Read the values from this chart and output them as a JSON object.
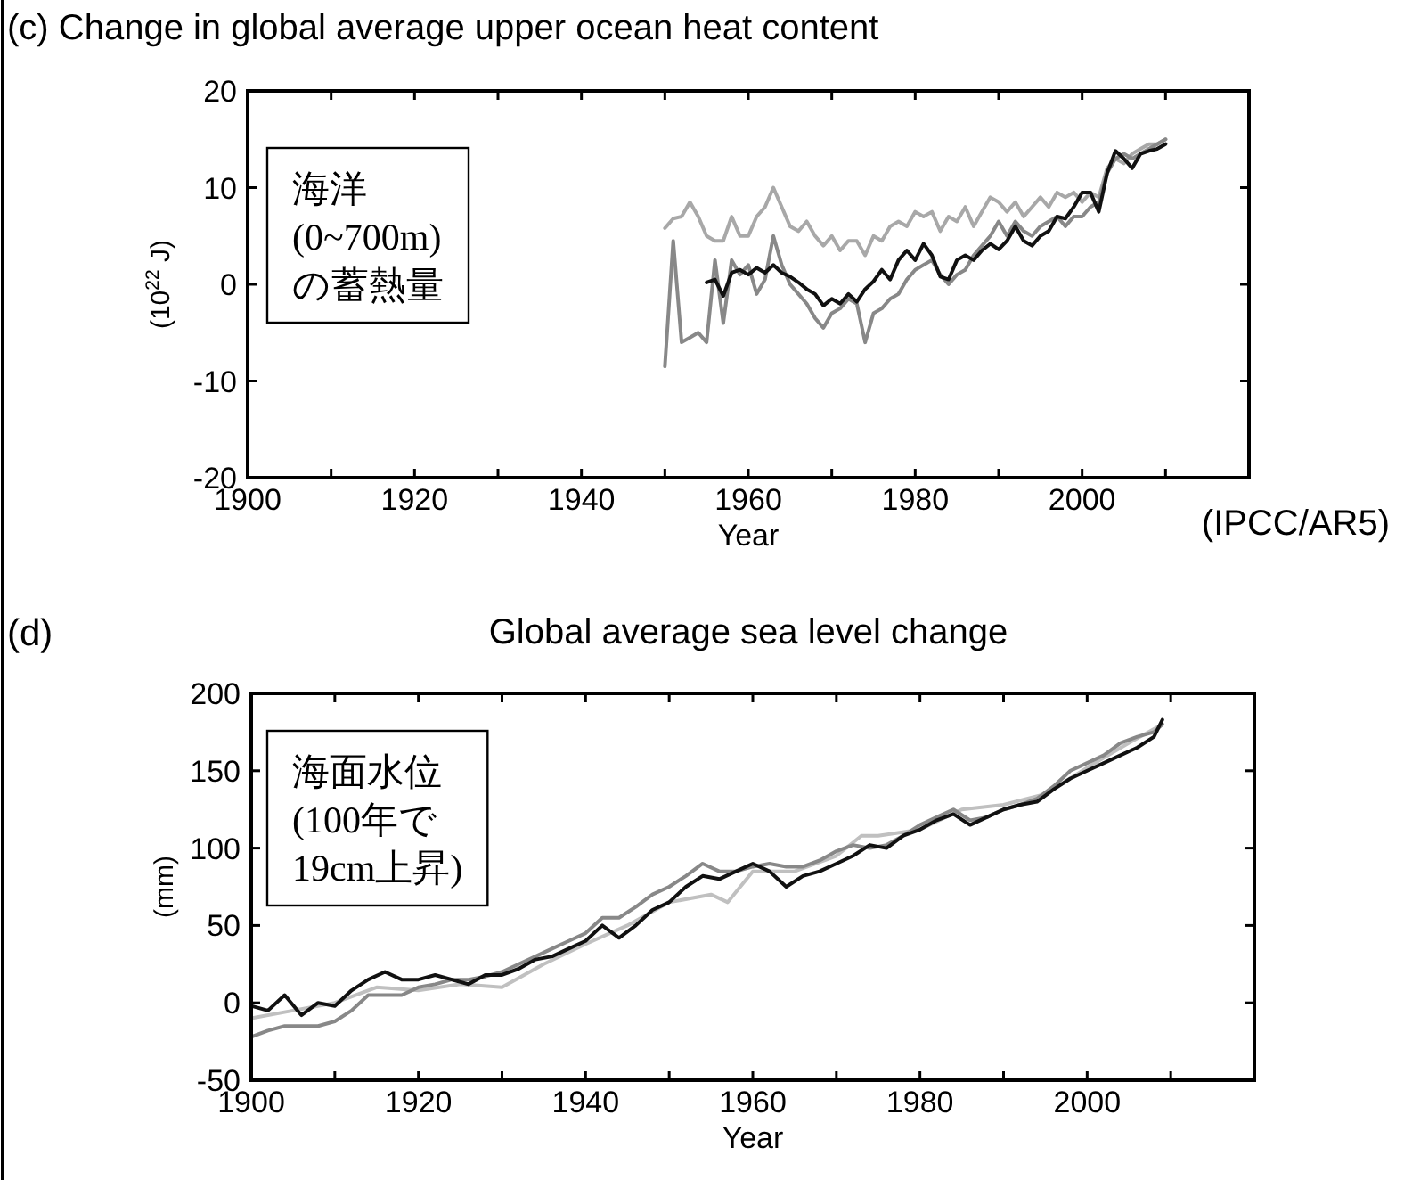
{
  "chart_data": [
    {
      "type": "line",
      "title": "(c) Change in global average upper ocean heat content",
      "xlabel": "Year",
      "ylabel": "(10$^{22}$ J)",
      "annotations": [
        "海洋\n(0~700m)\nの蓄熱量",
        "(IPCC/AR5)"
      ],
      "xlim": [
        1900,
        2020
      ],
      "ylim": [
        -20,
        20
      ],
      "xticks": [
        1900,
        {
          "value": 1910,
          "label": null
        },
        1920,
        {
          "value": 1930,
          "label": null
        },
        1940,
        {
          "value": 1950,
          "label": null
        },
        1960,
        {
          "value": 1970,
          "label": null
        },
        1980,
        {
          "value": 1990,
          "label": null
        },
        2000,
        {
          "value": 2010,
          "label": null
        },
        {
          "value": 2020,
          "label": null
        }
      ],
      "yticks": [
        -20,
        -10,
        0,
        10,
        20
      ],
      "grid": false,
      "marker": "none",
      "line_style": "solid",
      "series": [
        {
          "color": "#a8a8a8",
          "x": [
            1950,
            1951,
            1952,
            1953,
            1954,
            1955,
            1956,
            1957,
            1958,
            1959,
            1960,
            1961,
            1962,
            1963,
            1964,
            1965,
            1966,
            1967,
            1968,
            1969,
            1970,
            1971,
            1972,
            1973,
            1974,
            1975,
            1976,
            1977,
            1978,
            1979,
            1980,
            1981,
            1982,
            1983,
            1984,
            1985,
            1986,
            1987,
            1988,
            1989,
            1990,
            1991,
            1992,
            1993,
            1994,
            1995,
            1996,
            1997,
            1998,
            1999,
            2000,
            2001,
            2002,
            2003,
            2004,
            2005,
            2006,
            2007,
            2008,
            2009,
            2010
          ],
          "values": [
            5.8,
            6.8,
            7.0,
            8.5,
            7.0,
            5.0,
            4.5,
            4.5,
            7.0,
            5.0,
            5.0,
            7.0,
            8.0,
            10.0,
            8.0,
            6.0,
            5.5,
            6.5,
            5.0,
            4.0,
            5.0,
            3.5,
            4.5,
            4.5,
            3.0,
            5.0,
            4.5,
            6.0,
            6.5,
            6.0,
            7.5,
            7.0,
            7.5,
            5.5,
            7.0,
            6.5,
            8.0,
            6.0,
            7.5,
            9.0,
            8.5,
            7.5,
            8.5,
            7.0,
            8.0,
            9.0,
            8.0,
            9.5,
            9.0,
            9.5,
            8.5,
            9.5,
            9.0,
            12.0,
            13.0,
            12.5,
            13.5,
            14.0,
            14.5,
            14.5,
            15.0
          ]
        },
        {
          "color": "#888888",
          "x": [
            1950,
            1951,
            1952,
            1953,
            1954,
            1955,
            1956,
            1957,
            1958,
            1959,
            1960,
            1961,
            1962,
            1963,
            1964,
            1965,
            1966,
            1967,
            1968,
            1969,
            1970,
            1971,
            1972,
            1973,
            1974,
            1975,
            1976,
            1977,
            1978,
            1979,
            1980,
            1981,
            1982,
            1983,
            1984,
            1985,
            1986,
            1987,
            1988,
            1989,
            1990,
            1991,
            1992,
            1993,
            1994,
            1995,
            1996,
            1997,
            1998,
            1999,
            2000,
            2001,
            2002,
            2003,
            2004,
            2005,
            2006,
            2007,
            2008,
            2009,
            2010
          ],
          "values": [
            -8.5,
            4.5,
            -6.0,
            -5.5,
            -5.0,
            -6.0,
            2.5,
            -4.0,
            2.5,
            1.0,
            2.0,
            -1.0,
            0.5,
            5.0,
            2.0,
            0.0,
            -1.0,
            -2.0,
            -3.5,
            -4.5,
            -3.0,
            -2.5,
            -1.5,
            -2.0,
            -6.0,
            -3.0,
            -2.5,
            -1.5,
            -1.0,
            0.5,
            1.5,
            2.0,
            2.5,
            1.0,
            0.0,
            1.0,
            1.5,
            3.0,
            4.0,
            5.0,
            6.5,
            5.0,
            6.5,
            5.5,
            5.0,
            6.0,
            6.5,
            7.0,
            6.0,
            7.0,
            7.0,
            8.0,
            8.5,
            11.5,
            13.0,
            13.5,
            13.0,
            13.5,
            14.0,
            14.5,
            15.0
          ]
        },
        {
          "color": "#111111",
          "x": [
            1955,
            1956,
            1957,
            1958,
            1959,
            1960,
            1961,
            1962,
            1963,
            1964,
            1965,
            1966,
            1967,
            1968,
            1969,
            1970,
            1971,
            1972,
            1973,
            1974,
            1975,
            1976,
            1977,
            1978,
            1979,
            1980,
            1981,
            1982,
            1983,
            1984,
            1985,
            1986,
            1987,
            1988,
            1989,
            1990,
            1991,
            1992,
            1993,
            1994,
            1995,
            1996,
            1997,
            1998,
            1999,
            2000,
            2001,
            2002,
            2003,
            2004,
            2005,
            2006,
            2007,
            2008,
            2009,
            2010
          ],
          "values": [
            0.2,
            0.5,
            -1.2,
            1.2,
            1.5,
            1.0,
            1.7,
            1.2,
            2.0,
            1.2,
            0.8,
            0.2,
            -0.5,
            -1.0,
            -2.2,
            -1.5,
            -2.0,
            -1.0,
            -1.8,
            -0.5,
            0.3,
            1.5,
            0.5,
            2.5,
            3.5,
            2.5,
            4.2,
            3.0,
            0.8,
            0.5,
            2.5,
            3.0,
            2.5,
            3.5,
            4.2,
            3.6,
            4.5,
            6.0,
            4.5,
            4.0,
            5.0,
            5.5,
            7.0,
            6.8,
            8.0,
            9.5,
            9.5,
            7.5,
            11.5,
            13.8,
            13.0,
            12.0,
            13.5,
            13.8,
            14.0,
            14.5
          ]
        }
      ]
    },
    {
      "type": "line",
      "title": "Global average sea level change",
      "xlabel": "Year",
      "ylabel": "(mm)",
      "annotations": [
        "(d)",
        "海面水位\n(100年で\n19cm上昇)"
      ],
      "xlim": [
        1900,
        2020
      ],
      "ylim": [
        -50,
        200
      ],
      "xticks": [
        1900,
        {
          "value": 1910,
          "label": null
        },
        1920,
        {
          "value": 1930,
          "label": null
        },
        1940,
        {
          "value": 1950,
          "label": null
        },
        1960,
        {
          "value": 1970,
          "label": null
        },
        1980,
        {
          "value": 1990,
          "label": null
        },
        2000,
        {
          "value": 2010,
          "label": null
        },
        {
          "value": 2020,
          "label": null
        }
      ],
      "yticks": [
        -50,
        0,
        50,
        100,
        150,
        200
      ],
      "grid": false,
      "marker": "none",
      "line_style": "solid",
      "series": [
        {
          "color": "#c0c0c0",
          "x": [
            1900,
            1905,
            1910,
            1915,
            1920,
            1925,
            1930,
            1935,
            1940,
            1945,
            1950,
            1955,
            1957,
            1960,
            1965,
            1970,
            1973,
            1975,
            1980,
            1985,
            1990,
            1995,
            2000,
            2005,
            2009
          ],
          "values": [
            -10,
            -5,
            0,
            10,
            8,
            12,
            10,
            25,
            38,
            50,
            65,
            70,
            65,
            85,
            85,
            95,
            108,
            108,
            112,
            125,
            128,
            135,
            152,
            168,
            180
          ]
        },
        {
          "color": "#888888",
          "x": [
            1900,
            1902,
            1904,
            1906,
            1908,
            1910,
            1912,
            1914,
            1916,
            1918,
            1920,
            1922,
            1924,
            1926,
            1928,
            1930,
            1932,
            1934,
            1936,
            1938,
            1940,
            1942,
            1944,
            1946,
            1948,
            1950,
            1952,
            1954,
            1956,
            1958,
            1960,
            1962,
            1964,
            1966,
            1968,
            1970,
            1972,
            1974,
            1976,
            1978,
            1980,
            1982,
            1984,
            1986,
            1988,
            1990,
            1992,
            1994,
            1996,
            1998,
            2000,
            2002,
            2004,
            2006,
            2008,
            2009
          ],
          "values": [
            -22,
            -18,
            -15,
            -15,
            -15,
            -12,
            -5,
            5,
            5,
            5,
            10,
            12,
            15,
            15,
            17,
            20,
            25,
            30,
            35,
            40,
            45,
            55,
            55,
            62,
            70,
            75,
            82,
            90,
            85,
            85,
            88,
            90,
            88,
            88,
            92,
            98,
            102,
            100,
            102,
            108,
            115,
            120,
            125,
            118,
            120,
            125,
            128,
            132,
            140,
            150,
            155,
            160,
            168,
            172,
            175,
            180
          ]
        },
        {
          "color": "#111111",
          "x": [
            1900,
            1902,
            1904,
            1906,
            1908,
            1910,
            1912,
            1914,
            1916,
            1918,
            1920,
            1922,
            1924,
            1926,
            1928,
            1930,
            1932,
            1934,
            1936,
            1938,
            1940,
            1942,
            1944,
            1946,
            1948,
            1950,
            1952,
            1954,
            1956,
            1958,
            1960,
            1962,
            1964,
            1966,
            1968,
            1970,
            1972,
            1974,
            1976,
            1978,
            1980,
            1982,
            1984,
            1986,
            1988,
            1990,
            1992,
            1994,
            1996,
            1998,
            2000,
            2002,
            2004,
            2006,
            2008,
            2009
          ],
          "values": [
            -2,
            -5,
            5,
            -8,
            0,
            -2,
            8,
            15,
            20,
            15,
            15,
            18,
            15,
            12,
            18,
            18,
            22,
            28,
            30,
            35,
            40,
            50,
            42,
            50,
            60,
            65,
            75,
            82,
            80,
            85,
            90,
            85,
            75,
            82,
            85,
            90,
            95,
            102,
            100,
            108,
            112,
            118,
            122,
            115,
            120,
            125,
            128,
            130,
            138,
            145,
            150,
            155,
            160,
            165,
            172,
            183
          ]
        }
      ]
    }
  ]
}
